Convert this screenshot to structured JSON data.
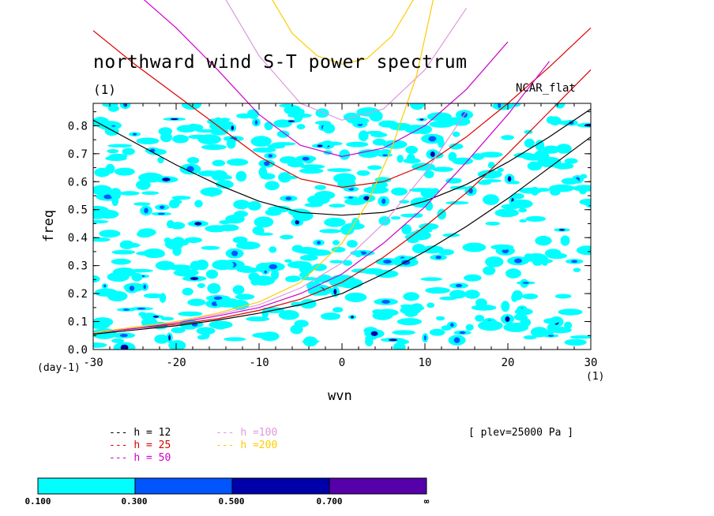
{
  "page": {
    "title": "northward wind S-T power spectrum",
    "subtitle": "(1)",
    "corner_label": "NCAR_flat",
    "x_unit": "(1)",
    "y_unit": "(day-1)",
    "plev_note": "[ plev=25000 Pa ]"
  },
  "colors": {
    "fill_0_1_0_3": "#00ffff",
    "fill_0_3_0_5": "#0055ff",
    "fill_0_5_0_7": "#0000aa",
    "fill_0_7_inf": "#5500aa",
    "h12": "#000000",
    "h25": "#dd0000",
    "h50": "#cc00cc",
    "h100": "#dd99dd",
    "h200": "#ffcc00"
  },
  "chart_data": {
    "type": "heatmap",
    "title": "northward wind S-T power spectrum",
    "xlabel": "wvn",
    "ylabel": "freq",
    "xlim": [
      -30,
      30
    ],
    "ylim": [
      0.0,
      0.88
    ],
    "x_ticks": [
      -30,
      -20,
      -10,
      0,
      10,
      20,
      30
    ],
    "y_ticks": [
      0.0,
      0.1,
      0.2,
      0.3,
      0.4,
      0.5,
      0.6,
      0.7,
      0.8
    ],
    "x_tick_labels": [
      "-30",
      "-20",
      "-10",
      "0",
      "10",
      "20",
      "30"
    ],
    "y_tick_labels": [
      "0.0",
      "0.1",
      "0.2",
      "0.3",
      "0.4",
      "0.5",
      "0.6",
      "0.7",
      "0.8"
    ],
    "colorbar": {
      "levels": [
        "0.100",
        "0.300",
        "0.500",
        "0.700",
        "∞"
      ]
    },
    "legend": {
      "placement": "bottom-left",
      "entries": [
        {
          "key": "h12",
          "label": "h = 12"
        },
        {
          "key": "h25",
          "label": "h = 25"
        },
        {
          "key": "h50",
          "label": "h = 50"
        },
        {
          "key": "h100",
          "label": "h =100"
        },
        {
          "key": "h200",
          "label": "h =200"
        }
      ]
    },
    "dispersion_curves": [
      {
        "key": "h12",
        "h": 12,
        "series": [
          {
            "part": "upper",
            "x": [
              -30,
              -25,
              -20,
              -15,
              -10,
              -5,
              0,
              5,
              10,
              15,
              20,
              25,
              30
            ],
            "y": [
              0.82,
              0.74,
              0.66,
              0.59,
              0.53,
              0.49,
              0.48,
              0.49,
              0.53,
              0.59,
              0.67,
              0.76,
              0.86
            ]
          },
          {
            "part": "lower",
            "x": [
              -30,
              -25,
              -20,
              -15,
              -10,
              -5,
              0,
              5,
              10,
              15,
              20,
              25,
              30
            ],
            "y": [
              0.055,
              0.07,
              0.085,
              0.105,
              0.13,
              0.16,
              0.2,
              0.27,
              0.35,
              0.44,
              0.54,
              0.65,
              0.76
            ]
          }
        ]
      },
      {
        "key": "h25",
        "h": 25,
        "series": [
          {
            "part": "upper",
            "x": [
              -30,
              -25,
              -20,
              -15,
              -10,
              -5,
              0,
              5,
              10,
              15,
              20,
              25,
              30
            ],
            "y": [
              1.14,
              1.02,
              0.91,
              0.8,
              0.69,
              0.61,
              0.58,
              0.6,
              0.66,
              0.76,
              0.88,
              1.01,
              1.15
            ]
          },
          {
            "part": "lower",
            "x": [
              -30,
              -25,
              -20,
              -15,
              -10,
              -5,
              0,
              5,
              10,
              15,
              20,
              25,
              30
            ],
            "y": [
              0.06,
              0.075,
              0.09,
              0.11,
              0.14,
              0.18,
              0.24,
              0.33,
              0.44,
              0.56,
              0.7,
              0.85,
              1.0
            ]
          }
        ]
      },
      {
        "key": "h50",
        "h": 50,
        "series": [
          {
            "part": "upper",
            "x": [
              -25,
              -20,
              -15,
              -10,
              -5,
              0,
              5,
              10,
              15,
              20
            ],
            "y": [
              1.28,
              1.15,
              1.0,
              0.84,
              0.73,
              0.69,
              0.72,
              0.8,
              0.93,
              1.1
            ]
          },
          {
            "part": "lower",
            "x": [
              -30,
              -25,
              -20,
              -15,
              -10,
              -5,
              0,
              5,
              10,
              15,
              20,
              25
            ],
            "y": [
              0.06,
              0.075,
              0.095,
              0.12,
              0.15,
              0.2,
              0.27,
              0.38,
              0.51,
              0.67,
              0.84,
              1.03
            ]
          }
        ]
      },
      {
        "key": "h100",
        "h": 100,
        "series": [
          {
            "part": "upper",
            "x": [
              -15,
              -10,
              -5,
              0,
              5,
              10,
              15
            ],
            "y": [
              1.3,
              1.05,
              0.88,
              0.82,
              0.86,
              1.0,
              1.22
            ]
          },
          {
            "part": "lower",
            "x": [
              -30,
              -25,
              -20,
              -15,
              -10,
              -5,
              0,
              5,
              10,
              15
            ],
            "y": [
              0.06,
              0.08,
              0.1,
              0.125,
              0.16,
              0.22,
              0.31,
              0.45,
              0.63,
              0.85
            ]
          }
        ]
      },
      {
        "key": "h200",
        "h": 200,
        "series": [
          {
            "part": "upper",
            "x": [
              -9,
              -6,
              -3,
              0,
              3,
              6,
              9
            ],
            "y": [
              1.28,
              1.13,
              1.05,
              1.02,
              1.04,
              1.12,
              1.27
            ]
          },
          {
            "part": "lower",
            "x": [
              -30,
              -25,
              -20,
              -15,
              -10,
              -5,
              0,
              3,
              6,
              9,
              11
            ],
            "y": [
              0.06,
              0.08,
              0.1,
              0.13,
              0.17,
              0.24,
              0.38,
              0.52,
              0.72,
              0.98,
              1.25
            ]
          }
        ]
      }
    ]
  }
}
